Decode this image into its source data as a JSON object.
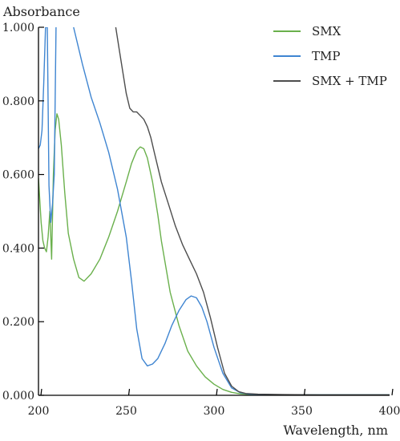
{
  "chart_data": {
    "type": "line",
    "title": "",
    "xlabel": "Wavelength, nm",
    "ylabel": "Absorbance",
    "xlim": [
      200,
      400
    ],
    "ylim": [
      0,
      1.0
    ],
    "grid": false,
    "legend_position": "top-right",
    "x_ticks": [
      "200",
      "250",
      "300",
      "350",
      "400"
    ],
    "y_ticks": [
      "0.000",
      "0.200",
      "0.400",
      "0.600",
      "0.800",
      "1.000"
    ],
    "series": [
      {
        "name": "SMX",
        "color": "#6ab04c",
        "x": [
          200,
          201.5,
          202.5,
          203.5,
          204.5,
          205.5,
          206.5,
          207.5,
          208.5,
          209.5,
          210.5,
          211.5,
          213,
          215,
          217,
          220,
          223,
          226,
          230,
          235,
          240,
          245,
          250,
          253,
          256,
          258,
          260,
          262,
          265,
          268,
          270,
          275,
          280,
          285,
          290,
          295,
          300,
          305,
          310,
          315,
          320,
          340,
          360,
          380,
          400
        ],
        "values": [
          0.59,
          0.47,
          0.42,
          0.4,
          0.39,
          0.43,
          0.5,
          0.37,
          0.6,
          0.72,
          0.765,
          0.75,
          0.68,
          0.55,
          0.44,
          0.37,
          0.32,
          0.31,
          0.33,
          0.37,
          0.43,
          0.5,
          0.58,
          0.63,
          0.665,
          0.675,
          0.67,
          0.645,
          0.58,
          0.49,
          0.42,
          0.28,
          0.19,
          0.12,
          0.08,
          0.05,
          0.03,
          0.016,
          0.008,
          0.004,
          0.002,
          0.001,
          0.001,
          0.001,
          0.001
        ]
      },
      {
        "name": "TMP",
        "color": "#3f85d1",
        "x": [
          200,
          201,
          202,
          203,
          204,
          205,
          206,
          207,
          208,
          209,
          210,
          212,
          214,
          216,
          218,
          220,
          225,
          230,
          235,
          240,
          245,
          250,
          253,
          256,
          259,
          262,
          265,
          268,
          272,
          276,
          280,
          284,
          287,
          290,
          293,
          296,
          300,
          305,
          310,
          315,
          320,
          340,
          360,
          380,
          400
        ],
        "values": [
          0.67,
          0.68,
          0.72,
          0.85,
          1.0,
          1.0,
          0.57,
          0.47,
          0.52,
          0.6,
          1.0,
          1.12,
          1.1,
          1.06,
          1.03,
          1.0,
          0.9,
          0.81,
          0.74,
          0.66,
          0.56,
          0.43,
          0.31,
          0.18,
          0.1,
          0.08,
          0.085,
          0.1,
          0.14,
          0.19,
          0.23,
          0.26,
          0.27,
          0.265,
          0.24,
          0.2,
          0.13,
          0.06,
          0.02,
          0.007,
          0.003,
          0.001,
          0.001,
          0.001,
          0.001
        ]
      },
      {
        "name": "SMX + TMP",
        "color": "#4d4d4d",
        "x": [
          244,
          246,
          248,
          250,
          252,
          254,
          256,
          258,
          260,
          262,
          264,
          266,
          268,
          270,
          274,
          278,
          282,
          286,
          290,
          294,
          298,
          302,
          306,
          310,
          314,
          318,
          325,
          340,
          360,
          380,
          400
        ],
        "values": [
          1.0,
          0.94,
          0.88,
          0.82,
          0.78,
          0.77,
          0.77,
          0.76,
          0.75,
          0.73,
          0.7,
          0.66,
          0.62,
          0.58,
          0.52,
          0.46,
          0.41,
          0.37,
          0.33,
          0.28,
          0.21,
          0.13,
          0.06,
          0.025,
          0.01,
          0.005,
          0.003,
          0.002,
          0.001,
          0.001,
          0.001
        ]
      }
    ]
  }
}
